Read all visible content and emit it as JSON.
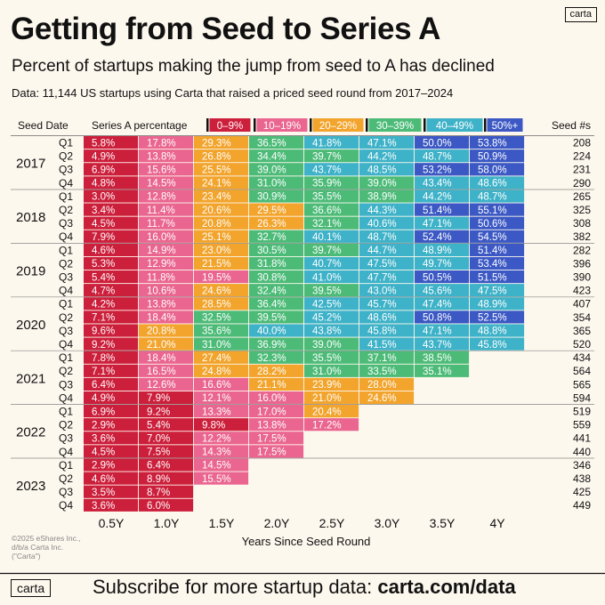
{
  "header": {
    "title": "Getting from Seed to Series A",
    "subtitle": "Percent of startups making the jump from seed to A has declined",
    "data_note": "Data: 11,144 US startups using Carta that raised a priced seed round from 2017–2024",
    "logo": "carta"
  },
  "footer": {
    "cta_prefix": "Subscribe for more startup data: ",
    "cta_link": "carta.com/data",
    "logo": "carta",
    "copyright": "©2025 eShares Inc., d/b/a Carta Inc. (\"Carta\")"
  },
  "colors": {
    "bucket_0_9": "#cc1f3b",
    "bucket_10_19": "#ea6690",
    "bucket_20_29": "#f2a42c",
    "bucket_30_39": "#4dbb78",
    "bucket_40_49": "#3eb2c8",
    "bucket_50_plus": "#3b58c4"
  },
  "chart_data": {
    "type": "heatmap",
    "column_headers": {
      "seed_date": "Seed Date",
      "series_a_pct": "Series A percentage",
      "seed_count": "Seed #s"
    },
    "legend": [
      {
        "label": "0–9%",
        "color": "#cc1f3b"
      },
      {
        "label": "10–19%",
        "color": "#ea6690"
      },
      {
        "label": "20–29%",
        "color": "#f2a42c"
      },
      {
        "label": "30–39%",
        "color": "#4dbb78"
      },
      {
        "label": "40–49%",
        "color": "#3eb2c8"
      },
      {
        "label": "50%+",
        "color": "#3b58c4"
      }
    ],
    "x_categories": [
      "0.5Y",
      "1.0Y",
      "1.5Y",
      "2.0Y",
      "2.5Y",
      "3.0Y",
      "3.5Y",
      "4Y"
    ],
    "xlabel": "Years Since Seed Round",
    "years": [
      {
        "year": "2017",
        "quarters": [
          {
            "q": "Q1",
            "values": [
              5.8,
              17.8,
              29.3,
              36.5,
              41.8,
              47.1,
              50.0,
              53.8
            ],
            "seeds": "208"
          },
          {
            "q": "Q2",
            "values": [
              4.9,
              13.8,
              26.8,
              34.4,
              39.7,
              44.2,
              48.7,
              50.9
            ],
            "seeds": "224"
          },
          {
            "q": "Q3",
            "values": [
              6.9,
              15.6,
              25.5,
              39.0,
              43.7,
              48.5,
              53.2,
              58.0
            ],
            "seeds": "231"
          },
          {
            "q": "Q4",
            "values": [
              4.8,
              14.5,
              24.1,
              31.0,
              35.9,
              39.0,
              43.4,
              48.6
            ],
            "seeds": "290"
          }
        ]
      },
      {
        "year": "2018",
        "quarters": [
          {
            "q": "Q1",
            "values": [
              3.0,
              12.8,
              23.4,
              30.9,
              35.5,
              38.9,
              44.2,
              48.7
            ],
            "seeds": "265"
          },
          {
            "q": "Q2",
            "values": [
              3.4,
              11.4,
              20.6,
              29.5,
              36.6,
              44.3,
              51.4,
              55.1
            ],
            "seeds": "325"
          },
          {
            "q": "Q3",
            "values": [
              4.5,
              11.7,
              20.8,
              26.3,
              32.1,
              40.6,
              47.1,
              50.6
            ],
            "seeds": "308"
          },
          {
            "q": "Q4",
            "values": [
              7.9,
              16.0,
              25.1,
              32.7,
              40.1,
              48.7,
              52.4,
              54.5
            ],
            "seeds": "382"
          }
        ]
      },
      {
        "year": "2019",
        "quarters": [
          {
            "q": "Q1",
            "values": [
              4.6,
              14.9,
              23.0,
              30.5,
              39.7,
              44.7,
              48.9,
              51.4
            ],
            "seeds": "282"
          },
          {
            "q": "Q2",
            "values": [
              5.3,
              12.9,
              21.5,
              31.8,
              40.7,
              47.5,
              49.7,
              53.4
            ],
            "seeds": "396"
          },
          {
            "q": "Q3",
            "values": [
              5.4,
              11.8,
              19.5,
              30.8,
              41.0,
              47.7,
              50.5,
              51.5
            ],
            "seeds": "390"
          },
          {
            "q": "Q4",
            "values": [
              4.7,
              10.6,
              24.6,
              32.4,
              39.5,
              43.0,
              45.6,
              47.5
            ],
            "seeds": "423"
          }
        ]
      },
      {
        "year": "2020",
        "quarters": [
          {
            "q": "Q1",
            "values": [
              4.2,
              13.8,
              28.5,
              36.4,
              42.5,
              45.7,
              47.4,
              48.9
            ],
            "seeds": "407"
          },
          {
            "q": "Q2",
            "values": [
              7.1,
              18.4,
              32.5,
              39.5,
              45.2,
              48.6,
              50.8,
              52.5
            ],
            "seeds": "354"
          },
          {
            "q": "Q3",
            "values": [
              9.6,
              20.8,
              35.6,
              40.0,
              43.8,
              45.8,
              47.1,
              48.8
            ],
            "seeds": "365"
          },
          {
            "q": "Q4",
            "values": [
              9.2,
              21.0,
              31.0,
              36.9,
              39.0,
              41.5,
              43.7,
              45.8
            ],
            "seeds": "520"
          }
        ]
      },
      {
        "year": "2021",
        "quarters": [
          {
            "q": "Q1",
            "values": [
              7.8,
              18.4,
              27.4,
              32.3,
              35.5,
              37.1,
              38.5
            ],
            "seeds": "434"
          },
          {
            "q": "Q2",
            "values": [
              7.1,
              16.5,
              24.8,
              28.2,
              31.0,
              33.5,
              35.1
            ],
            "seeds": "564"
          },
          {
            "q": "Q3",
            "values": [
              6.4,
              12.6,
              16.6,
              21.1,
              23.9,
              28.0
            ],
            "seeds": "565"
          },
          {
            "q": "Q4",
            "values": [
              4.9,
              7.9,
              12.1,
              16.0,
              21.0,
              24.6
            ],
            "seeds": "594"
          }
        ]
      },
      {
        "year": "2022",
        "quarters": [
          {
            "q": "Q1",
            "values": [
              6.9,
              9.2,
              13.3,
              17.0,
              20.4
            ],
            "seeds": "519"
          },
          {
            "q": "Q2",
            "values": [
              2.9,
              5.4,
              9.8,
              13.8,
              17.2
            ],
            "seeds": "559"
          },
          {
            "q": "Q3",
            "values": [
              3.6,
              7.0,
              12.2,
              17.5
            ],
            "seeds": "441"
          },
          {
            "q": "Q4",
            "values": [
              4.5,
              7.5,
              14.3,
              17.5
            ],
            "seeds": "440"
          }
        ]
      },
      {
        "year": "2023",
        "quarters": [
          {
            "q": "Q1",
            "values": [
              2.9,
              6.4,
              14.5
            ],
            "seeds": "346"
          },
          {
            "q": "Q2",
            "values": [
              4.6,
              8.9,
              15.5
            ],
            "seeds": "438"
          },
          {
            "q": "Q3",
            "values": [
              3.5,
              8.7
            ],
            "seeds": "425"
          },
          {
            "q": "Q4",
            "values": [
              3.6,
              6.0
            ],
            "seeds": "449"
          }
        ]
      }
    ]
  }
}
